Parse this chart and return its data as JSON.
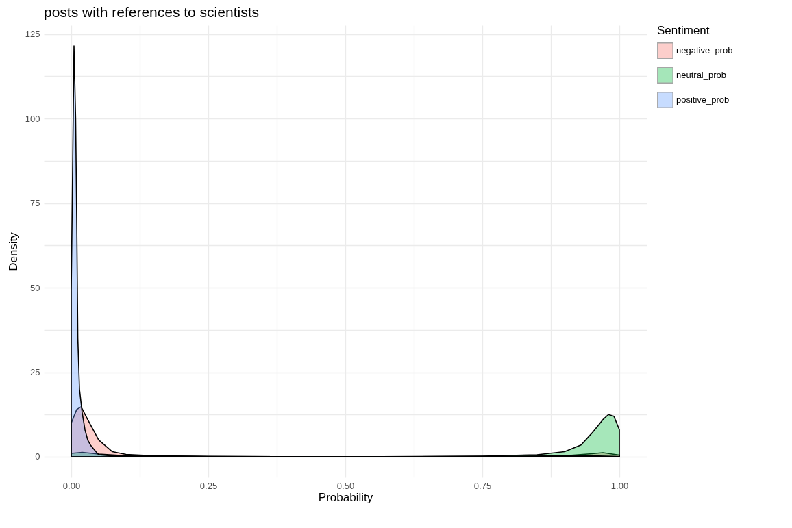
{
  "chart_data": {
    "type": "area",
    "title": "posts with references to scientists",
    "xlabel": "Probability",
    "ylabel": "Density",
    "legend_title": "Sentiment",
    "legend": "right",
    "grid": true,
    "xlim": [
      -0.05,
      1.05
    ],
    "ylim": [
      -6.08,
      127.58
    ],
    "xticks": [
      {
        "value": 0,
        "label": "0.00"
      },
      {
        "value": 0.125,
        "label": null
      },
      {
        "value": 0.25,
        "label": "0.25"
      },
      {
        "value": 0.375,
        "label": null
      },
      {
        "value": 0.5,
        "label": "0.50"
      },
      {
        "value": 0.625,
        "label": null
      },
      {
        "value": 0.75,
        "label": "0.75"
      },
      {
        "value": 0.875,
        "label": null
      },
      {
        "value": 1,
        "label": "1.00"
      }
    ],
    "yticks": [
      0,
      {
        "value": 12.5,
        "label": null
      },
      25,
      {
        "value": 37.5,
        "label": null
      },
      50,
      {
        "value": 62.5,
        "label": null
      },
      75,
      {
        "value": 87.5,
        "label": null
      },
      100,
      {
        "value": 112.5,
        "label": null
      },
      125
    ],
    "series": [
      {
        "name": "negative_prob",
        "color": "#f8766d",
        "x": [
          0,
          0.01,
          0.018,
          0.03,
          0.05,
          0.075,
          0.1,
          0.15,
          0.25,
          0.5,
          0.75,
          0.9,
          0.95,
          0.97,
          1.0
        ],
        "values": [
          10,
          14,
          14.8,
          11,
          5,
          1.5,
          0.7,
          0.3,
          0.1,
          0,
          0.1,
          0.3,
          0.9,
          1.2,
          0.5
        ]
      },
      {
        "name": "neutral_prob",
        "color": "#00ba38",
        "x": [
          0,
          0.02,
          0.05,
          0.1,
          0.25,
          0.5,
          0.75,
          0.85,
          0.9,
          0.93,
          0.95,
          0.97,
          0.98,
          0.99,
          1.0
        ],
        "values": [
          1,
          1.3,
          0.8,
          0.3,
          0.1,
          0,
          0.2,
          0.6,
          1.5,
          3.5,
          7,
          11,
          12.5,
          12,
          8
        ]
      },
      {
        "name": "positive_prob",
        "color": "#619cff",
        "x": [
          0,
          0.005,
          0.008,
          0.01,
          0.012,
          0.015,
          0.02,
          0.025,
          0.03,
          0.035,
          0.04,
          0.045,
          0.05,
          0.07,
          0.1,
          0.25,
          0.5,
          0.75,
          0.95,
          1.0
        ],
        "values": [
          49,
          121.5,
          100,
          70,
          35,
          20,
          13,
          8,
          5,
          3.5,
          2.5,
          1.5,
          0.6,
          0.3,
          0.2,
          0.1,
          0,
          0.1,
          0.3,
          0.1
        ]
      }
    ]
  }
}
